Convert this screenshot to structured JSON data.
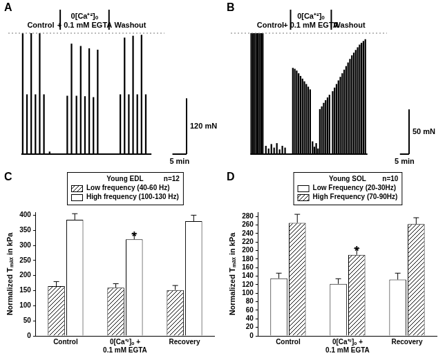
{
  "chart_data": [
    {
      "type": "bar",
      "title": "A",
      "color": "#000000",
      "tick_labels": false,
      "grid": false,
      "x": [
        0.5,
        2,
        3.5,
        5,
        6.5,
        8,
        10,
        16.25,
        17.75,
        19.5,
        21,
        22.5,
        24,
        25.5,
        27,
        35,
        36.5,
        38,
        39.5,
        41,
        42.5,
        44
      ],
      "values": [
        260,
        128,
        260,
        128,
        260,
        128,
        5,
        125,
        237,
        125,
        232,
        124,
        227,
        122,
        224,
        128,
        250,
        128,
        254,
        128,
        256,
        128
      ],
      "xlim": [
        0,
        46
      ],
      "ylim": [
        0,
        260
      ],
      "reference_line": 260,
      "phases": [
        {
          "label": "Control",
          "start": 0,
          "end": 13.75
        },
        {
          "label": "0[Ca⁺²]ₒ + 0.1 mM EGTA",
          "start": 13.75,
          "end": 31
        },
        {
          "label": "Washout",
          "start": 31,
          "end": 46
        }
      ],
      "scale_bars": [
        {
          "axis": "y",
          "value": 120,
          "label": "120 mN"
        },
        {
          "axis": "x",
          "value": 5,
          "label": "5 min"
        }
      ]
    },
    {
      "type": "bar",
      "title": "B",
      "color": "#000000",
      "tick_labels": false,
      "grid": false,
      "x": [
        0.5,
        1.4,
        2.3,
        3.2,
        4.1,
        5,
        5.9,
        6.8,
        8.5,
        10,
        11.5,
        13,
        14.5,
        16,
        17.5,
        19,
        23.25,
        24.3,
        25.35,
        26.4,
        27.45,
        28.5,
        29.55,
        30.6,
        31.65,
        32.7,
        34,
        35,
        36,
        37,
        38,
        39.05,
        40.1,
        41.15,
        42.2,
        43.25,
        45,
        46.05,
        47.1,
        48.15,
        49.2,
        50.25,
        51.3,
        52.35,
        53.4,
        54.45,
        55.5,
        56.55,
        57.6,
        58.65,
        59.7,
        60.75,
        61.8,
        62.85
      ],
      "values": [
        135,
        135,
        135,
        135,
        135,
        135,
        135,
        135,
        9,
        6,
        11,
        7,
        12,
        5,
        9,
        7,
        96,
        95,
        93,
        90,
        87,
        84,
        81,
        78,
        75,
        72,
        14,
        8,
        12,
        6,
        50,
        53,
        57,
        60,
        63,
        66,
        70,
        74,
        78,
        82,
        86,
        90,
        94,
        98,
        102,
        106,
        110,
        113,
        116,
        119,
        122,
        124,
        126,
        128
      ],
      "xlim": [
        0,
        64
      ],
      "ylim": [
        0,
        135
      ],
      "reference_line": 135,
      "phases": [
        {
          "label": "Control",
          "start": 0,
          "end": 22
        },
        {
          "label": "0[Ca⁺²]ₒ + 0.1 mM EGTA",
          "start": 22,
          "end": 44.25
        },
        {
          "label": "Washout",
          "start": 44.25,
          "end": 64
        }
      ],
      "scale_bars": [
        {
          "axis": "y",
          "value": 50,
          "label": "50 mN"
        },
        {
          "axis": "x",
          "value": 5,
          "label": "5 min"
        }
      ]
    },
    {
      "type": "bar",
      "title": "C",
      "ylabel": "Normalized Tₘₐₓ in kPa",
      "categories": [
        "Control",
        "0[Ca⁺²]ₒ + 0.1 mM EGTA",
        "Recovery"
      ],
      "series": [
        {
          "name": "Low frequency (40-60 Hz)",
          "color": "#000000",
          "marker": "hatch",
          "values": [
            165,
            160,
            152
          ],
          "errors": [
            15,
            13,
            15
          ]
        },
        {
          "name": "High frequency (100-130 Hz)",
          "color": "#ffffff",
          "marker": "solid",
          "values": [
            385,
            320,
            380
          ],
          "errors": [
            20,
            18,
            20
          ]
        }
      ],
      "annotations": [
        {
          "text": "*",
          "series": 1,
          "category": 1
        }
      ],
      "legend_title": "Young EDL",
      "n_label": "n=12",
      "legend": "top",
      "grid": false,
      "ylim": [
        0,
        410
      ],
      "yticks": [
        0,
        50,
        100,
        150,
        200,
        250,
        300,
        350,
        400
      ]
    },
    {
      "type": "bar",
      "title": "D",
      "ylabel": "Normalized Tₘₐₓ in kPa",
      "categories": [
        "Control",
        "0[Ca⁺²]ₒ + 0.1 mM EGTA",
        "Recovery"
      ],
      "series": [
        {
          "name": "Low Frequency (20-30Hz)",
          "color": "#ffffff",
          "marker": "solid",
          "values": [
            135,
            122,
            132
          ],
          "errors": [
            12,
            12,
            15
          ]
        },
        {
          "name": "High Frequency (70-90Hz)",
          "color": "#000000",
          "marker": "hatch",
          "values": [
            265,
            190,
            262
          ],
          "errors": [
            20,
            15,
            15
          ]
        }
      ],
      "annotations": [
        {
          "text": "*",
          "series": 1,
          "category": 1
        }
      ],
      "legend_title": "Young SOL",
      "n_label": "n=10",
      "legend": "top",
      "grid": false,
      "ylim": [
        0,
        290
      ],
      "yticks": [
        0,
        20,
        40,
        60,
        80,
        100,
        120,
        140,
        160,
        180,
        200,
        220,
        240,
        260,
        280
      ]
    }
  ]
}
